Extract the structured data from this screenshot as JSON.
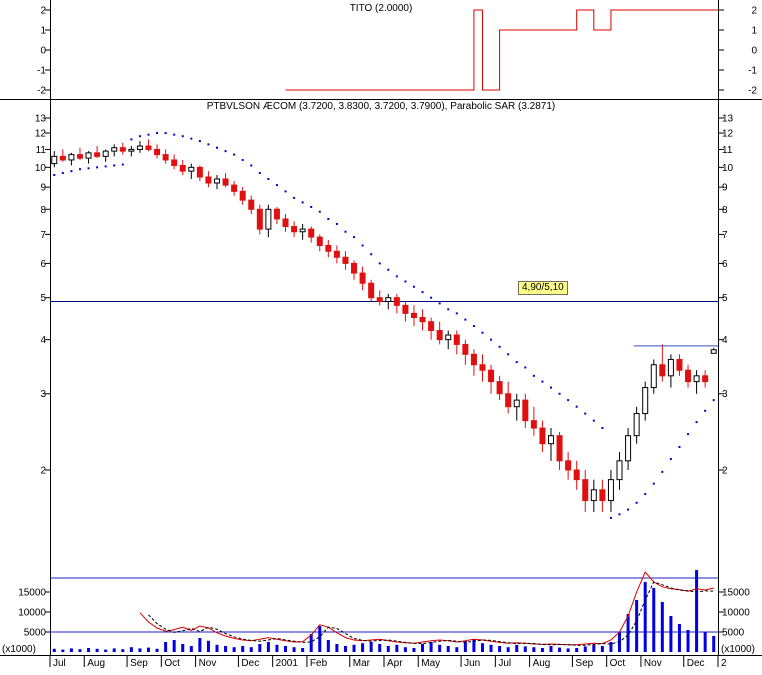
{
  "volume_unit": "(x1000)",
  "x_axis": {
    "total_weeks": 78,
    "months": [
      [
        "Jul",
        0
      ],
      [
        "Aug",
        4
      ],
      [
        "Sep",
        9
      ],
      [
        "Oct",
        13
      ],
      [
        "Nov",
        17
      ],
      [
        "Dec",
        22
      ],
      [
        "2001",
        26
      ],
      [
        "Feb",
        30
      ],
      [
        "Mar",
        35
      ],
      [
        "Apr",
        39
      ],
      [
        "May",
        43
      ],
      [
        "Jun",
        48
      ],
      [
        "Jul",
        52
      ],
      [
        "Aug",
        56
      ],
      [
        "Sep",
        61
      ],
      [
        "Oct",
        65
      ],
      [
        "Nov",
        69
      ],
      [
        "Dec",
        74
      ],
      [
        "2",
        78
      ]
    ]
  },
  "chart_data": [
    {
      "type": "line",
      "title": "TITO (2.0000)",
      "yticks": [
        2,
        1,
        0,
        -1,
        -2
      ],
      "ylim": [
        -2.5,
        2.5
      ],
      "grid": false,
      "legend_position": "none",
      "series": [
        {
          "name": "TITO",
          "color": "#dd0000",
          "step": true,
          "start_week": 27,
          "values": [
            -2,
            -2,
            -2,
            -2,
            -2,
            -2,
            -2,
            -2,
            -2,
            -2,
            -2,
            -2,
            -2,
            -2,
            -2,
            -2,
            -2,
            -2,
            -2,
            -2,
            -2,
            -2,
            2,
            -2,
            -2,
            1,
            1,
            1,
            1,
            1,
            1,
            1,
            1,
            1,
            2,
            2,
            1,
            1,
            2,
            2,
            2,
            2,
            2,
            2,
            2,
            2,
            2,
            2,
            2,
            2,
            2
          ]
        }
      ]
    },
    {
      "type": "candlestick",
      "title": "PTBVLSON ÆCOM (3.7200, 3.8300, 3.7200, 3.7900), Parabolic SAR (3.2871)",
      "log_scale": true,
      "yticks": [
        13,
        12,
        11,
        10,
        9,
        8,
        7,
        6,
        5,
        4,
        3,
        2
      ],
      "up_color": "#ffffff",
      "down_color": "#e01010",
      "sar_color": "#0000d0",
      "last_ohlc": [
        3.72,
        3.83,
        3.72,
        3.79
      ],
      "sar_last": 3.2871,
      "candles": [
        [
          10.2,
          10.9,
          10.0,
          10.6
        ],
        [
          10.6,
          11.0,
          10.3,
          10.4
        ],
        [
          10.4,
          10.8,
          10.1,
          10.7
        ],
        [
          10.7,
          11.1,
          10.4,
          10.5
        ],
        [
          10.5,
          10.9,
          10.2,
          10.8
        ],
        [
          10.8,
          11.2,
          10.5,
          10.6
        ],
        [
          10.6,
          11.0,
          10.3,
          10.9
        ],
        [
          10.9,
          11.3,
          10.6,
          11.1
        ],
        [
          11.1,
          11.4,
          10.7,
          10.9
        ],
        [
          10.9,
          11.2,
          10.6,
          11.0
        ],
        [
          11.0,
          11.5,
          10.8,
          11.2
        ],
        [
          11.2,
          11.6,
          10.9,
          11.0
        ],
        [
          11.0,
          11.3,
          10.5,
          10.7
        ],
        [
          10.7,
          11.0,
          10.2,
          10.4
        ],
        [
          10.4,
          10.7,
          9.9,
          10.1
        ],
        [
          10.1,
          10.4,
          9.6,
          9.8
        ],
        [
          9.8,
          10.2,
          9.4,
          10.0
        ],
        [
          10.0,
          10.1,
          9.3,
          9.5
        ],
        [
          9.5,
          9.8,
          9.0,
          9.2
        ],
        [
          9.2,
          9.6,
          8.9,
          9.4
        ],
        [
          9.4,
          9.7,
          9.0,
          9.1
        ],
        [
          9.1,
          9.3,
          8.6,
          8.8
        ],
        [
          8.8,
          9.0,
          8.2,
          8.4
        ],
        [
          8.4,
          8.6,
          7.8,
          8.0
        ],
        [
          8.0,
          8.2,
          7.0,
          7.2
        ],
        [
          7.2,
          8.2,
          6.9,
          8.0
        ],
        [
          8.0,
          8.1,
          7.4,
          7.6
        ],
        [
          7.6,
          7.8,
          7.1,
          7.3
        ],
        [
          7.3,
          7.5,
          6.9,
          7.1
        ],
        [
          7.1,
          7.4,
          6.8,
          7.2
        ],
        [
          7.2,
          7.3,
          6.7,
          6.9
        ],
        [
          6.9,
          7.0,
          6.4,
          6.6
        ],
        [
          6.6,
          6.8,
          6.2,
          6.4
        ],
        [
          6.4,
          6.6,
          6.0,
          6.2
        ],
        [
          6.2,
          6.4,
          5.8,
          6.0
        ],
        [
          6.0,
          6.1,
          5.5,
          5.7
        ],
        [
          5.7,
          5.9,
          5.2,
          5.4
        ],
        [
          5.4,
          5.5,
          4.9,
          5.0
        ],
        [
          5.0,
          5.2,
          4.8,
          4.9
        ],
        [
          4.9,
          5.1,
          4.7,
          5.0
        ],
        [
          5.0,
          5.1,
          4.6,
          4.8
        ],
        [
          4.8,
          4.9,
          4.4,
          4.6
        ],
        [
          4.6,
          4.8,
          4.3,
          4.5
        ],
        [
          4.5,
          4.7,
          4.2,
          4.4
        ],
        [
          4.4,
          4.5,
          4.0,
          4.2
        ],
        [
          4.2,
          4.4,
          3.9,
          4.0
        ],
        [
          4.0,
          4.2,
          3.8,
          4.1
        ],
        [
          4.1,
          4.2,
          3.7,
          3.9
        ],
        [
          3.9,
          4.0,
          3.5,
          3.7
        ],
        [
          3.7,
          3.8,
          3.3,
          3.5
        ],
        [
          3.5,
          3.7,
          3.2,
          3.4
        ],
        [
          3.4,
          3.5,
          3.0,
          3.2
        ],
        [
          3.2,
          3.3,
          2.9,
          3.0
        ],
        [
          3.0,
          3.2,
          2.7,
          2.8
        ],
        [
          2.8,
          3.0,
          2.6,
          2.9
        ],
        [
          2.9,
          3.0,
          2.5,
          2.6
        ],
        [
          2.6,
          2.8,
          2.4,
          2.5
        ],
        [
          2.5,
          2.6,
          2.2,
          2.3
        ],
        [
          2.3,
          2.5,
          2.1,
          2.4
        ],
        [
          2.4,
          2.45,
          2.0,
          2.1
        ],
        [
          2.1,
          2.2,
          1.9,
          2.0
        ],
        [
          2.0,
          2.1,
          1.8,
          1.9
        ],
        [
          1.9,
          2.0,
          1.6,
          1.7
        ],
        [
          1.7,
          1.9,
          1.6,
          1.8
        ],
        [
          1.8,
          1.9,
          1.6,
          1.7
        ],
        [
          1.7,
          2.0,
          1.6,
          1.9
        ],
        [
          1.9,
          2.2,
          1.8,
          2.1
        ],
        [
          2.1,
          2.5,
          2.0,
          2.4
        ],
        [
          2.4,
          2.8,
          2.3,
          2.7
        ],
        [
          2.7,
          3.2,
          2.6,
          3.1
        ],
        [
          3.1,
          3.6,
          3.0,
          3.5
        ],
        [
          3.5,
          3.9,
          3.2,
          3.3
        ],
        [
          3.3,
          3.7,
          3.1,
          3.6
        ],
        [
          3.6,
          3.7,
          3.3,
          3.4
        ],
        [
          3.4,
          3.5,
          3.1,
          3.2
        ],
        [
          3.2,
          3.4,
          3.0,
          3.3
        ],
        [
          3.3,
          3.4,
          3.1,
          3.2
        ],
        [
          3.72,
          3.83,
          3.72,
          3.79
        ]
      ],
      "sar": [
        9.6,
        9.7,
        9.8,
        9.9,
        9.95,
        10.0,
        10.05,
        10.1,
        10.15,
        11.6,
        11.8,
        11.9,
        12.0,
        12.0,
        11.9,
        11.8,
        11.65,
        11.5,
        11.3,
        11.1,
        10.9,
        10.7,
        10.4,
        10.1,
        9.7,
        9.4,
        9.1,
        8.8,
        8.5,
        8.3,
        8.1,
        7.9,
        7.6,
        7.4,
        7.1,
        6.9,
        6.6,
        6.3,
        6.0,
        5.8,
        5.6,
        5.45,
        5.3,
        5.15,
        5.0,
        4.85,
        4.7,
        4.6,
        4.45,
        4.3,
        4.15,
        4.0,
        3.85,
        3.7,
        3.55,
        3.45,
        3.3,
        3.2,
        3.1,
        3.0,
        2.9,
        2.8,
        2.7,
        2.6,
        2.5,
        1.55,
        1.58,
        1.62,
        1.68,
        1.76,
        1.86,
        1.98,
        2.12,
        2.26,
        2.42,
        2.58,
        2.74,
        2.9
      ],
      "hlines": [
        {
          "value": 4.9,
          "label": "4,90/5,10",
          "color": "#000080",
          "span": "full"
        },
        {
          "value": 3.87,
          "color": "#3050c8",
          "span": "from_week",
          "from_week": 68
        }
      ]
    },
    {
      "type": "bar",
      "name": "Volume",
      "unit": "(x1000)",
      "yticks": [
        15000,
        10000,
        5000
      ],
      "bar_color": "#0000e0",
      "values_x1000": [
        0.8,
        0.6,
        0.9,
        0.7,
        1.0,
        0.8,
        0.6,
        0.9,
        0.7,
        1.2,
        0.9,
        1.1,
        0.8,
        2.5,
        3.0,
        2.0,
        1.5,
        3.5,
        2.8,
        1.8,
        1.5,
        1.2,
        1.5,
        1.2,
        2.0,
        2.5,
        1.8,
        1.5,
        1.2,
        1.0,
        4.5,
        6.5,
        3.0,
        2.0,
        1.5,
        1.8,
        2.2,
        2.5,
        2.0,
        1.5,
        1.8,
        1.2,
        1.0,
        2.0,
        2.5,
        1.8,
        1.5,
        1.2,
        2.8,
        3.2,
        2.2,
        1.8,
        1.5,
        1.2,
        1.8,
        1.4,
        1.2,
        1.0,
        1.5,
        1.1,
        0.9,
        1.0,
        1.4,
        1.8,
        1.5,
        2.5,
        5.0,
        9.5,
        13.0,
        17.5,
        16.0,
        12.5,
        9.0,
        7.0,
        5.5,
        20.5,
        5.0,
        4.0
      ],
      "hlines": [
        {
          "value": 18500,
          "color": "#2020c0"
        },
        {
          "value": 5000,
          "color": "#2020c0"
        }
      ],
      "ma_lines": [
        {
          "name": "volume-ma-red",
          "color": "#dd0000",
          "style": "solid",
          "start_week": 10,
          "values": [
            9.8,
            7.5,
            6.0,
            5.2,
            5.6,
            6.2,
            5.4,
            6.5,
            6.0,
            4.8,
            4.0,
            3.4,
            3.0,
            2.8,
            3.2,
            3.6,
            3.2,
            2.8,
            2.5,
            2.6,
            4.2,
            6.8,
            6.2,
            4.8,
            3.6,
            3.0,
            2.8,
            3.0,
            3.2,
            2.8,
            2.5,
            2.3,
            2.2,
            2.5,
            2.8,
            3.0,
            2.8,
            2.5,
            2.8,
            3.2,
            3.0,
            2.7,
            2.4,
            2.2,
            2.3,
            2.2,
            2.0,
            1.9,
            2.0,
            1.9,
            1.8,
            1.8,
            2.0,
            2.2,
            2.1,
            3.0,
            5.0,
            9.0,
            15.0,
            20.0,
            17.5,
            16.3,
            15.8,
            15.6,
            15.2,
            15.8,
            15.5,
            16.0
          ]
        },
        {
          "name": "volume-ma-black",
          "color": "#000000",
          "style": "dashed",
          "start_week": 11,
          "values": [
            9.3,
            7.1,
            5.7,
            4.9,
            5.3,
            5.9,
            5.1,
            6.2,
            5.7,
            4.6,
            3.8,
            3.2,
            2.9,
            2.7,
            3.0,
            3.4,
            3.0,
            2.7,
            2.4,
            2.5,
            3.8,
            6.2,
            5.9,
            4.6,
            3.4,
            2.9,
            2.7,
            2.9,
            3.0,
            2.7,
            2.4,
            2.2,
            2.1,
            2.4,
            2.7,
            2.9,
            2.7,
            2.4,
            2.7,
            3.0,
            2.9,
            2.6,
            2.3,
            2.1,
            2.2,
            2.1,
            1.9,
            1.8,
            1.9,
            1.8,
            1.7,
            1.7,
            1.9,
            2.1,
            2.0,
            2.6,
            4.2,
            7.8,
            13.0,
            17.5,
            16.8,
            16.0,
            15.5,
            15.3,
            15.0,
            15.3,
            15.2
          ]
        }
      ]
    }
  ]
}
